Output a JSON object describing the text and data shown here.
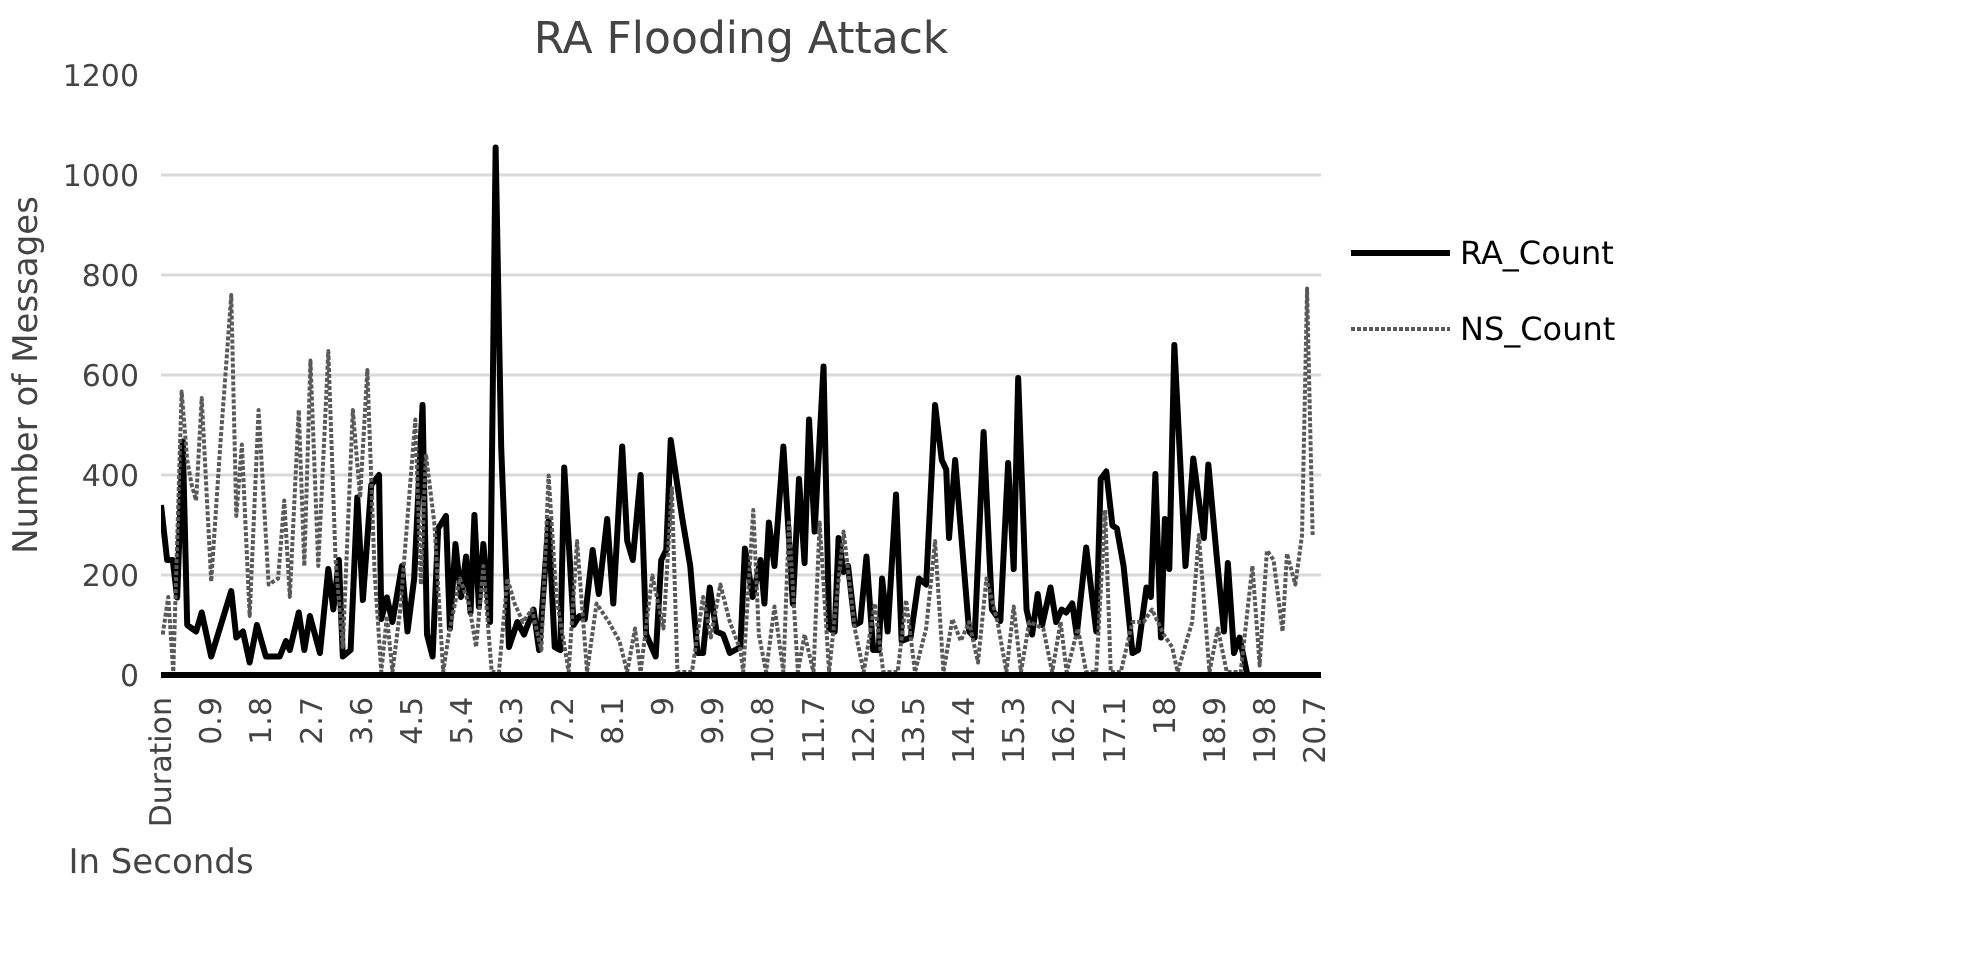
{
  "chart_data": {
    "type": "line",
    "title": "RA Flooding Attack",
    "xlabel": "In Seconds",
    "ylabel": "Number of Messages",
    "xlim": [
      0,
      20.8
    ],
    "ylim": [
      0,
      1200
    ],
    "xticks": [
      {
        "value": 0,
        "label": "Duration"
      },
      0.9,
      1.8,
      2.7,
      3.6,
      4.5,
      5.4,
      6.3,
      7.2,
      8.1,
      9,
      9.9,
      10.8,
      11.7,
      12.6,
      13.5,
      14.4,
      15.3,
      16.2,
      17.1,
      18,
      18.9,
      19.8,
      20.7
    ],
    "yticks": [
      0,
      200,
      400,
      600,
      800,
      1000,
      1200
    ],
    "grid": "y",
    "legend": "right",
    "series": [
      {
        "name": "RA_Count",
        "color": "#000000",
        "line_style": "solid",
        "x": [
          0.0,
          0.11,
          0.21,
          0.29,
          0.39,
          0.47,
          0.63,
          0.73,
          0.9,
          1.26,
          1.35,
          1.47,
          1.59,
          1.72,
          1.88,
          2.13,
          2.24,
          2.31,
          2.47,
          2.57,
          2.67,
          2.85,
          3.0,
          3.09,
          3.19,
          3.26,
          3.4,
          3.52,
          3.62,
          3.77,
          3.91,
          3.95,
          4.05,
          4.15,
          4.32,
          4.42,
          4.54,
          4.69,
          4.77,
          4.87,
          4.97,
          5.11,
          5.18,
          5.28,
          5.38,
          5.47,
          5.55,
          5.62,
          5.7,
          5.78,
          5.9,
          6.0,
          6.1,
          6.24,
          6.39,
          6.51,
          6.68,
          6.78,
          6.95,
          7.06,
          7.16,
          7.23,
          7.4,
          7.5,
          7.6,
          7.74,
          7.85,
          8.0,
          8.11,
          8.27,
          8.36,
          8.46,
          8.6,
          8.7,
          8.87,
          8.97,
          9.06,
          9.14,
          9.34,
          9.49,
          9.62,
          9.72,
          9.84,
          9.96,
          10.08,
          10.2,
          10.39,
          10.47,
          10.61,
          10.75,
          10.82,
          10.9,
          11.0,
          11.16,
          11.33,
          11.44,
          11.54,
          11.62,
          11.72,
          11.88,
          11.98,
          12.08,
          12.15,
          12.24,
          12.32,
          12.44,
          12.54,
          12.65,
          12.77,
          12.87,
          12.93,
          13.03,
          13.18,
          13.28,
          13.44,
          13.59,
          13.72,
          13.88,
          14.0,
          14.08,
          14.13,
          14.24,
          14.49,
          14.59,
          14.75,
          14.9,
          15.05,
          15.19,
          15.29,
          15.37,
          15.52,
          15.62,
          15.72,
          15.8,
          15.95,
          16.05,
          16.15,
          16.23,
          16.34,
          16.42,
          16.59,
          16.77,
          16.85,
          16.95,
          17.06,
          17.14,
          17.26,
          17.42,
          17.52,
          17.67,
          17.75,
          17.83,
          17.93,
          18.0,
          18.08,
          18.17,
          18.37,
          18.51,
          18.7,
          18.78,
          18.93,
          19.06,
          19.13,
          19.24,
          19.34,
          19.48,
          20.7
        ],
        "values": [
          340,
          230,
          230,
          155,
          467,
          100,
          87,
          125,
          37,
          168,
          75,
          87,
          25,
          100,
          37,
          37,
          68,
          50,
          125,
          50,
          118,
          44,
          212,
          131,
          230,
          37,
          50,
          355,
          150,
          380,
          400,
          112,
          155,
          106,
          218,
          87,
          193,
          540,
          81,
          37,
          293,
          318,
          93,
          262,
          156,
          237,
          125,
          320,
          137,
          262,
          106,
          1055,
          455,
          56,
          106,
          81,
          131,
          50,
          308,
          56,
          50,
          415,
          100,
          118,
          112,
          250,
          162,
          312,
          143,
          457,
          268,
          230,
          400,
          81,
          37,
          230,
          250,
          470,
          318,
          218,
          44,
          44,
          175,
          87,
          81,
          44,
          56,
          253,
          156,
          230,
          143,
          305,
          218,
          457,
          143,
          392,
          224,
          511,
          287,
          617,
          93,
          87,
          274,
          206,
          218,
          100,
          106,
          237,
          50,
          50,
          193,
          87,
          361,
          68,
          75,
          193,
          181,
          540,
          430,
          411,
          274,
          430,
          87,
          75,
          486,
          131,
          108,
          424,
          212,
          594,
          131,
          81,
          162,
          100,
          175,
          106,
          131,
          125,
          143,
          81,
          255,
          87,
          392,
          407,
          299,
          293,
          218,
          44,
          50,
          175,
          156,
          402,
          75,
          312,
          212,
          660,
          218,
          433,
          274,
          421,
          237,
          87,
          224,
          44,
          75,
          0,
          0
        ]
      },
      {
        "name": "NS_Count",
        "color": "#595959",
        "line_style": "dotted",
        "x": [
          0.03,
          0.13,
          0.22,
          0.37,
          0.47,
          0.55,
          0.63,
          0.73,
          0.9,
          1.06,
          1.26,
          1.35,
          1.45,
          1.59,
          1.75,
          1.93,
          2.1,
          2.21,
          2.31,
          2.47,
          2.57,
          2.68,
          2.82,
          3.0,
          3.13,
          3.26,
          3.44,
          3.57,
          3.7,
          3.83,
          3.95,
          4.05,
          4.15,
          4.29,
          4.56,
          4.66,
          4.75,
          4.9,
          5.06,
          5.16,
          5.36,
          5.52,
          5.65,
          5.78,
          5.93,
          6.06,
          6.21,
          6.34,
          6.49,
          6.65,
          6.82,
          6.95,
          7.09,
          7.31,
          7.46,
          7.64,
          7.81,
          8.03,
          8.22,
          8.36,
          8.5,
          8.6,
          8.81,
          9.01,
          9.16,
          9.26,
          9.52,
          9.72,
          9.86,
          10.03,
          10.2,
          10.39,
          10.44,
          10.62,
          10.72,
          10.85,
          11.0,
          11.16,
          11.26,
          11.42,
          11.54,
          11.7,
          11.81,
          11.98,
          12.24,
          12.44,
          12.6,
          12.8,
          12.95,
          13.21,
          13.36,
          13.52,
          13.72,
          13.88,
          14.03,
          14.19,
          14.34,
          14.49,
          14.65,
          14.8,
          15.0,
          15.16,
          15.29,
          15.42,
          15.57,
          15.82,
          15.98,
          16.13,
          16.24,
          16.44,
          16.59,
          16.77,
          16.93,
          17.03,
          17.21,
          17.42,
          17.62,
          17.77,
          17.98,
          18.13,
          18.23,
          18.49,
          18.61,
          18.8,
          18.95,
          19.11,
          19.36,
          19.57,
          19.7,
          19.83,
          19.95,
          20.11,
          20.19,
          20.34,
          20.46,
          20.55,
          20.65
        ],
        "values": [
          81,
          156,
          6,
          567,
          430,
          380,
          349,
          554,
          187,
          455,
          760,
          318,
          461,
          118,
          530,
          181,
          193,
          349,
          156,
          530,
          218,
          629,
          218,
          648,
          230,
          56,
          530,
          355,
          610,
          206,
          6,
          118,
          6,
          131,
          511,
          181,
          442,
          305,
          6,
          81,
          193,
          143,
          56,
          218,
          6,
          6,
          193,
          143,
          106,
          131,
          50,
          399,
          156,
          6,
          268,
          6,
          143,
          106,
          68,
          6,
          93,
          6,
          199,
          93,
          374,
          6,
          6,
          156,
          75,
          181,
          106,
          50,
          6,
          330,
          81,
          6,
          137,
          6,
          305,
          6,
          81,
          6,
          305,
          6,
          287,
          93,
          6,
          143,
          6,
          6,
          150,
          6,
          93,
          268,
          6,
          112,
          68,
          106,
          25,
          193,
          106,
          6,
          137,
          6,
          106,
          93,
          6,
          106,
          6,
          93,
          6,
          6,
          330,
          6,
          6,
          106,
          106,
          131,
          81,
          56,
          6,
          106,
          280,
          6,
          93,
          6,
          6,
          218,
          19,
          249,
          230,
          87,
          243,
          181,
          280,
          773,
          280
        ]
      }
    ]
  }
}
